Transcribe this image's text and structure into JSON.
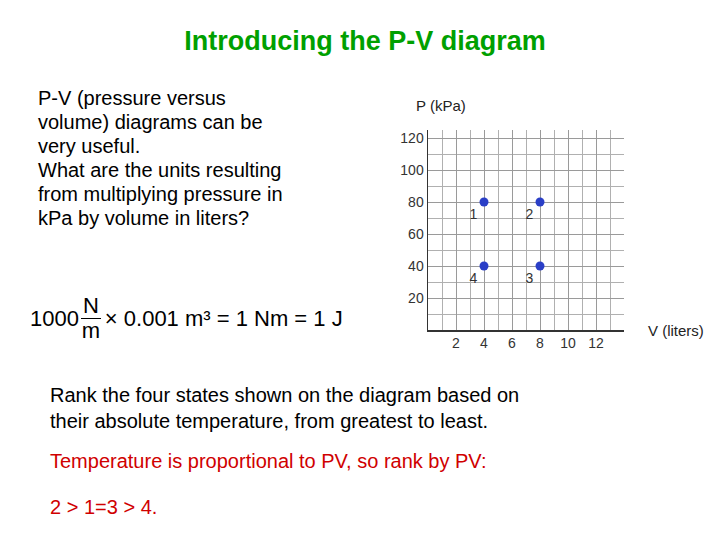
{
  "slide": {
    "title": "Introducing the P-V diagram",
    "intro": [
      "P-V (pressure versus",
      "volume) diagrams can be",
      "very useful.",
      "What are the units resulting",
      "from multiplying pressure in",
      "kPa by volume in liters?"
    ],
    "formula": {
      "coefficient": "1000",
      "numerator": "N",
      "denominator": "m",
      "rest": "× 0.001 m³ = 1 Nm = 1 J"
    },
    "question": [
      "Rank the four states shown on the diagram based on",
      "their absolute temperature, from greatest to least."
    ],
    "answer_intro": "Temperature is proportional to PV, so rank by PV:",
    "answer": "2 > 1=3 > 4."
  },
  "chart_data": {
    "type": "scatter",
    "x_label": "V (liters)",
    "y_label": "P (kPa)",
    "x": [
      4,
      8,
      8,
      4
    ],
    "values": [
      80,
      80,
      40,
      40
    ],
    "point_labels": [
      "1",
      "2",
      "3",
      "4"
    ],
    "color": "#2a3fc7",
    "marker": "circle",
    "xlim": [
      0,
      14
    ],
    "ylim": [
      0,
      125
    ],
    "xticks": [
      2,
      4,
      6,
      8,
      10,
      12
    ],
    "yticks": [
      20,
      40,
      60,
      80,
      100,
      120
    ],
    "grid": true
  }
}
